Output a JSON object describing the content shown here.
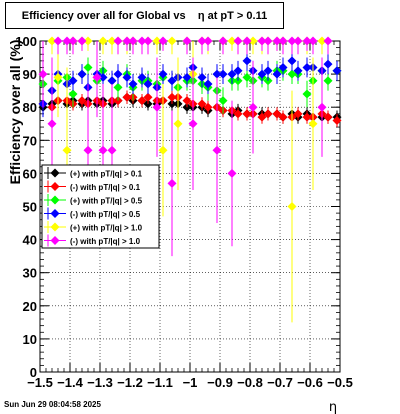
{
  "chart_data": {
    "type": "scatter",
    "title": "Efficiency over all for Global vs    η at pT > 0.11",
    "xlabel": "η",
    "ylabel": "Efficiency over all (%)",
    "xlim": [
      -1.5,
      -0.5
    ],
    "ylim": [
      0,
      100
    ],
    "x_ticks": [
      "−1.5",
      "−1.4",
      "−1.3",
      "−1.2",
      "−1.1",
      "−1",
      "−0.9",
      "−0.8",
      "−0.7",
      "−0.6",
      "−0.5"
    ],
    "x_tick_values": [
      -1.5,
      -1.4,
      -1.3,
      -1.2,
      -1.1,
      -1.0,
      -0.9,
      -0.8,
      -0.7,
      -0.6,
      -0.5
    ],
    "y_ticks": [
      "0",
      "10",
      "20",
      "30",
      "40",
      "50",
      "60",
      "70",
      "80",
      "90",
      "100"
    ],
    "y_tick_values": [
      0,
      10,
      20,
      30,
      40,
      50,
      60,
      70,
      80,
      90,
      100
    ],
    "grid": true,
    "legend_position": "middle-left",
    "series": [
      {
        "name": "(+) with pT/|q| > 0.1",
        "color": "#000000",
        "points": [
          [
            -1.49,
            80,
            2
          ],
          [
            -1.46,
            81,
            2
          ],
          [
            -1.44,
            82,
            2
          ],
          [
            -1.41,
            81,
            2
          ],
          [
            -1.39,
            82,
            2
          ],
          [
            -1.36,
            81,
            2
          ],
          [
            -1.34,
            82,
            2
          ],
          [
            -1.31,
            81,
            2
          ],
          [
            -1.29,
            82,
            2
          ],
          [
            -1.26,
            81,
            2
          ],
          [
            -1.24,
            82,
            2
          ],
          [
            -1.21,
            83,
            2
          ],
          [
            -1.19,
            82,
            2
          ],
          [
            -1.16,
            82,
            2
          ],
          [
            -1.14,
            81,
            2
          ],
          [
            -1.11,
            81,
            2
          ],
          [
            -1.09,
            82,
            2
          ],
          [
            -1.06,
            81,
            2
          ],
          [
            -1.04,
            81,
            2
          ],
          [
            -1.01,
            80,
            2
          ],
          [
            -0.99,
            80,
            2
          ],
          [
            -0.96,
            80,
            2
          ],
          [
            -0.94,
            79,
            2
          ],
          [
            -0.91,
            80,
            2
          ],
          [
            -0.89,
            79,
            2
          ],
          [
            -0.86,
            78,
            2
          ],
          [
            -0.84,
            79,
            2
          ],
          [
            -0.81,
            78,
            2
          ],
          [
            -0.79,
            78,
            2
          ],
          [
            -0.76,
            78,
            2
          ],
          [
            -0.74,
            78,
            2
          ],
          [
            -0.71,
            78,
            2
          ],
          [
            -0.69,
            77,
            2
          ],
          [
            -0.66,
            78,
            2
          ],
          [
            -0.64,
            77,
            2
          ],
          [
            -0.61,
            78,
            2
          ],
          [
            -0.59,
            77,
            2
          ],
          [
            -0.56,
            77,
            2
          ],
          [
            -0.54,
            77,
            2
          ],
          [
            -0.51,
            77,
            2
          ]
        ]
      },
      {
        "name": "(-) with pT/|q| > 0.1",
        "color": "#ff0000",
        "points": [
          [
            -1.49,
            81,
            2
          ],
          [
            -1.46,
            80,
            2
          ],
          [
            -1.44,
            82,
            2
          ],
          [
            -1.41,
            82,
            2
          ],
          [
            -1.39,
            81,
            2
          ],
          [
            -1.36,
            82,
            2
          ],
          [
            -1.34,
            81,
            2
          ],
          [
            -1.31,
            82,
            2
          ],
          [
            -1.29,
            81,
            2
          ],
          [
            -1.26,
            82,
            2
          ],
          [
            -1.24,
            82,
            2
          ],
          [
            -1.21,
            83,
            2
          ],
          [
            -1.19,
            83,
            2
          ],
          [
            -1.16,
            82,
            2
          ],
          [
            -1.14,
            83,
            2
          ],
          [
            -1.11,
            82,
            2
          ],
          [
            -1.09,
            82,
            2
          ],
          [
            -1.06,
            83,
            2
          ],
          [
            -1.04,
            83,
            2
          ],
          [
            -1.01,
            82,
            2
          ],
          [
            -0.99,
            81,
            2
          ],
          [
            -0.96,
            81,
            2
          ],
          [
            -0.94,
            80,
            2
          ],
          [
            -0.91,
            80,
            2
          ],
          [
            -0.89,
            79,
            2
          ],
          [
            -0.86,
            79,
            2
          ],
          [
            -0.84,
            78,
            2
          ],
          [
            -0.81,
            78,
            2
          ],
          [
            -0.79,
            78,
            2
          ],
          [
            -0.76,
            77,
            2
          ],
          [
            -0.74,
            78,
            2
          ],
          [
            -0.71,
            78,
            2
          ],
          [
            -0.69,
            77,
            2
          ],
          [
            -0.66,
            77,
            2
          ],
          [
            -0.64,
            78,
            2
          ],
          [
            -0.61,
            77,
            2
          ],
          [
            -0.59,
            77,
            2
          ],
          [
            -0.56,
            78,
            2
          ],
          [
            -0.54,
            77,
            2
          ],
          [
            -0.51,
            76,
            2
          ]
        ]
      },
      {
        "name": "(+) with pT/|q| > 0.5",
        "color": "#00ff00",
        "points": [
          [
            -1.49,
            87,
            3
          ],
          [
            -1.46,
            85,
            4
          ],
          [
            -1.44,
            88,
            3
          ],
          [
            -1.41,
            89,
            3
          ],
          [
            -1.39,
            84,
            4
          ],
          [
            -1.36,
            90,
            3
          ],
          [
            -1.34,
            92,
            3
          ],
          [
            -1.31,
            88,
            3
          ],
          [
            -1.29,
            91,
            3
          ],
          [
            -1.26,
            88,
            3
          ],
          [
            -1.24,
            86,
            4
          ],
          [
            -1.21,
            90,
            3
          ],
          [
            -1.19,
            86,
            4
          ],
          [
            -1.16,
            88,
            3
          ],
          [
            -1.14,
            88,
            3
          ],
          [
            -1.11,
            87,
            3
          ],
          [
            -1.09,
            89,
            3
          ],
          [
            -1.06,
            88,
            3
          ],
          [
            -1.04,
            86,
            4
          ],
          [
            -1.01,
            88,
            3
          ],
          [
            -0.99,
            88,
            3
          ],
          [
            -0.96,
            87,
            3
          ],
          [
            -0.94,
            86,
            4
          ],
          [
            -0.91,
            85,
            4
          ],
          [
            -0.89,
            82,
            4
          ],
          [
            -0.86,
            88,
            3
          ],
          [
            -0.84,
            88,
            3
          ],
          [
            -0.81,
            89,
            3
          ],
          [
            -0.79,
            88,
            3
          ],
          [
            -0.76,
            89,
            3
          ],
          [
            -0.74,
            88,
            3
          ],
          [
            -0.71,
            91,
            3
          ],
          [
            -0.69,
            91,
            3
          ],
          [
            -0.66,
            90,
            3
          ],
          [
            -0.64,
            90,
            3
          ],
          [
            -0.61,
            84,
            4
          ],
          [
            -0.59,
            88,
            4
          ],
          [
            -0.56,
            91,
            3
          ],
          [
            -0.54,
            88,
            3
          ],
          [
            -0.51,
            91,
            3
          ]
        ]
      },
      {
        "name": "(-) with pT/|q| > 0.5",
        "color": "#0000ff",
        "points": [
          [
            -1.49,
            81,
            4
          ],
          [
            -1.46,
            85,
            4
          ],
          [
            -1.44,
            90,
            3
          ],
          [
            -1.41,
            87,
            4
          ],
          [
            -1.39,
            88,
            3
          ],
          [
            -1.36,
            90,
            3
          ],
          [
            -1.34,
            86,
            4
          ],
          [
            -1.31,
            90,
            3
          ],
          [
            -1.29,
            89,
            3
          ],
          [
            -1.26,
            88,
            3
          ],
          [
            -1.24,
            90,
            3
          ],
          [
            -1.21,
            89,
            3
          ],
          [
            -1.19,
            87,
            3
          ],
          [
            -1.16,
            89,
            3
          ],
          [
            -1.14,
            87,
            3
          ],
          [
            -1.11,
            86,
            3
          ],
          [
            -1.09,
            90,
            3
          ],
          [
            -1.06,
            88,
            3
          ],
          [
            -1.04,
            89,
            3
          ],
          [
            -1.01,
            89,
            3
          ],
          [
            -0.99,
            92,
            3
          ],
          [
            -0.96,
            89,
            3
          ],
          [
            -0.94,
            87,
            3
          ],
          [
            -0.91,
            90,
            3
          ],
          [
            -0.89,
            90,
            3
          ],
          [
            -0.86,
            90,
            3
          ],
          [
            -0.84,
            91,
            3
          ],
          [
            -0.81,
            94,
            3
          ],
          [
            -0.79,
            91,
            3
          ],
          [
            -0.76,
            90,
            3
          ],
          [
            -0.74,
            91,
            3
          ],
          [
            -0.71,
            90,
            3
          ],
          [
            -0.69,
            92,
            3
          ],
          [
            -0.66,
            94,
            3
          ],
          [
            -0.64,
            91,
            3
          ],
          [
            -0.61,
            92,
            3
          ],
          [
            -0.59,
            92,
            3
          ],
          [
            -0.56,
            91,
            3
          ],
          [
            -0.54,
            93,
            3
          ],
          [
            -0.51,
            91,
            3
          ]
        ]
      },
      {
        "name": "(+) with pT/|q| > 1.0",
        "color": "#ffff00",
        "points": [
          [
            -1.46,
            100,
            4
          ],
          [
            -1.44,
            89,
            12
          ],
          [
            -1.41,
            67,
            25
          ],
          [
            -1.39,
            100,
            4
          ],
          [
            -1.36,
            100,
            3
          ],
          [
            -1.34,
            100,
            3
          ],
          [
            -1.31,
            89,
            10
          ],
          [
            -1.29,
            100,
            4
          ],
          [
            -1.26,
            100,
            4
          ],
          [
            -1.24,
            100,
            4
          ],
          [
            -1.21,
            100,
            4
          ],
          [
            -1.19,
            100,
            3
          ],
          [
            -1.14,
            100,
            4
          ],
          [
            -1.11,
            100,
            4
          ],
          [
            -1.09,
            67,
            20
          ],
          [
            -1.06,
            100,
            4
          ],
          [
            -1.04,
            75,
            20
          ],
          [
            -1.01,
            100,
            3
          ],
          [
            -0.99,
            90,
            10
          ],
          [
            -0.96,
            100,
            4
          ],
          [
            -0.94,
            100,
            4
          ],
          [
            -0.89,
            100,
            4
          ],
          [
            -0.86,
            100,
            3
          ],
          [
            -0.84,
            100,
            4
          ],
          [
            -0.81,
            100,
            3
          ],
          [
            -0.79,
            100,
            4
          ],
          [
            -0.76,
            100,
            4
          ],
          [
            -0.74,
            100,
            4
          ],
          [
            -0.71,
            100,
            3
          ],
          [
            -0.69,
            100,
            4
          ],
          [
            -0.66,
            50,
            35
          ],
          [
            -0.64,
            100,
            3
          ],
          [
            -0.61,
            100,
            4
          ],
          [
            -0.59,
            75,
            20
          ],
          [
            -0.56,
            100,
            4
          ]
        ]
      },
      {
        "name": "(-) with pT/|q| > 1.0",
        "color": "#ff00ff",
        "points": [
          [
            -1.49,
            90,
            10
          ],
          [
            -1.46,
            75,
            20
          ],
          [
            -1.44,
            100,
            4
          ],
          [
            -1.41,
            100,
            4
          ],
          [
            -1.39,
            100,
            4
          ],
          [
            -1.36,
            100,
            3
          ],
          [
            -1.34,
            67,
            20
          ],
          [
            -1.31,
            89,
            12
          ],
          [
            -1.29,
            67,
            20
          ],
          [
            -1.26,
            67,
            20
          ],
          [
            -1.24,
            100,
            4
          ],
          [
            -1.21,
            100,
            3
          ],
          [
            -1.19,
            100,
            4
          ],
          [
            -1.16,
            100,
            4
          ],
          [
            -1.14,
            100,
            4
          ],
          [
            -1.11,
            80,
            15
          ],
          [
            -1.09,
            100,
            3
          ],
          [
            -1.06,
            57,
            22
          ],
          [
            -1.01,
            100,
            4
          ],
          [
            -0.99,
            75,
            20
          ],
          [
            -0.96,
            100,
            4
          ],
          [
            -0.94,
            100,
            3
          ],
          [
            -0.91,
            67,
            22
          ],
          [
            -0.89,
            100,
            4
          ],
          [
            -0.86,
            60,
            22
          ],
          [
            -0.84,
            100,
            4
          ],
          [
            -0.81,
            100,
            4
          ],
          [
            -0.79,
            80,
            14
          ],
          [
            -0.76,
            100,
            3
          ],
          [
            -0.74,
            100,
            4
          ],
          [
            -0.71,
            100,
            3
          ],
          [
            -0.69,
            100,
            4
          ],
          [
            -0.66,
            100,
            4
          ],
          [
            -0.64,
            100,
            4
          ],
          [
            -0.61,
            100,
            3
          ],
          [
            -0.59,
            100,
            4
          ],
          [
            -0.56,
            80,
            15
          ],
          [
            -0.54,
            100,
            4
          ]
        ]
      }
    ]
  },
  "footer": {
    "timestamp": "Sun Jun 29 08:04:58 2025"
  }
}
